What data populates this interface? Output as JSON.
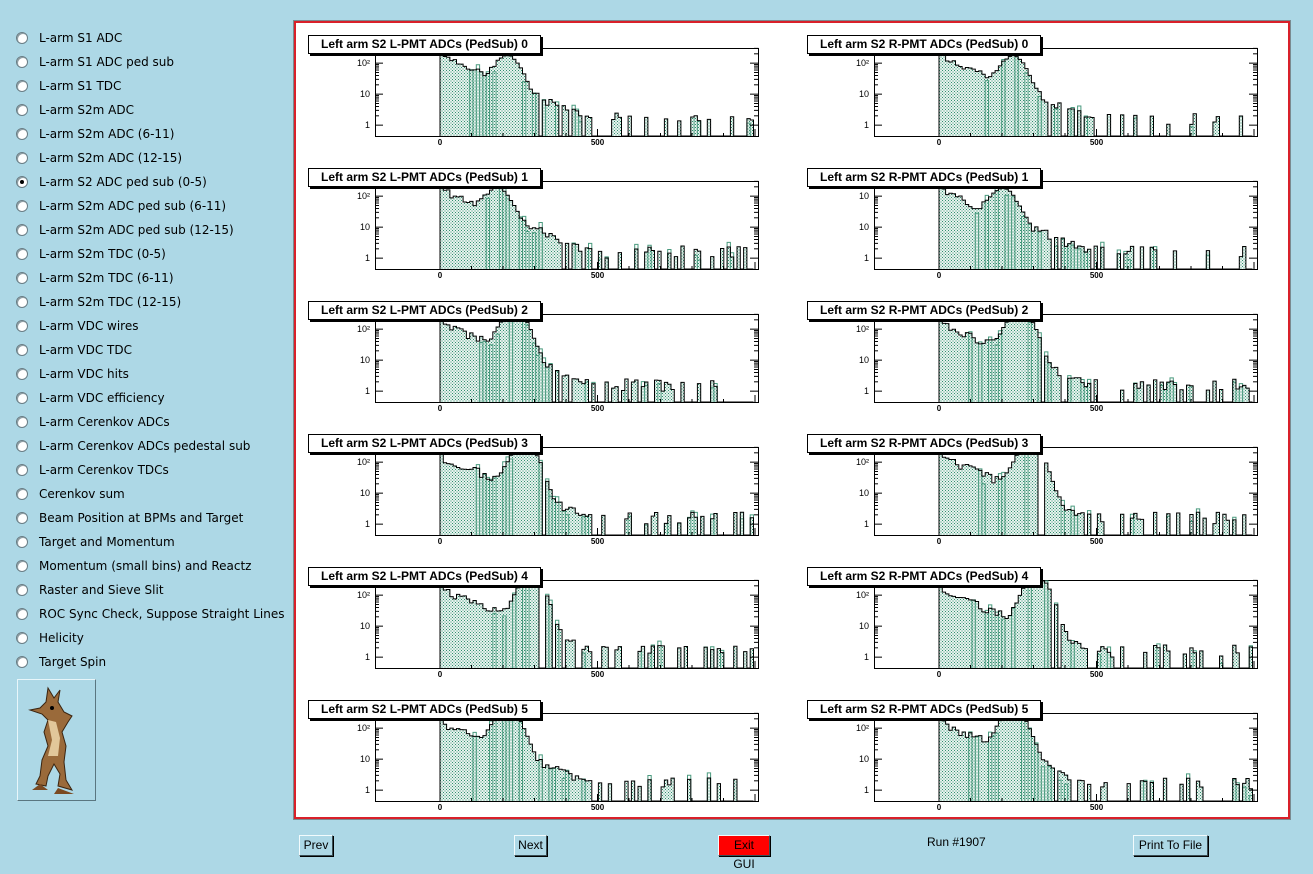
{
  "sidebar": {
    "selected_index": 6,
    "items": [
      {
        "label": "L-arm S1 ADC"
      },
      {
        "label": "L-arm S1 ADC ped sub"
      },
      {
        "label": "L-arm S1 TDC"
      },
      {
        "label": "L-arm S2m ADC"
      },
      {
        "label": "L-arm S2m ADC (6-11)"
      },
      {
        "label": "L-arm S2m ADC (12-15)"
      },
      {
        "label": "L-arm S2 ADC ped sub (0-5)"
      },
      {
        "label": "L-arm S2m ADC ped sub (6-11)"
      },
      {
        "label": "L-arm S2m ADC ped sub (12-15)"
      },
      {
        "label": "L-arm S2m TDC (0-5)"
      },
      {
        "label": "L-arm S2m TDC (6-11)"
      },
      {
        "label": "L-arm S2m TDC (12-15)"
      },
      {
        "label": "L-arm VDC wires"
      },
      {
        "label": "L-arm VDC TDC"
      },
      {
        "label": "L-arm VDC hits"
      },
      {
        "label": "L-arm VDC efficiency"
      },
      {
        "label": "L-arm Cerenkov ADCs"
      },
      {
        "label": "L-arm Cerenkov ADCs pedestal sub"
      },
      {
        "label": "L-arm Cerenkov TDCs"
      },
      {
        "label": "Cerenkov sum"
      },
      {
        "label": "Beam Position at BPMs and Target"
      },
      {
        "label": "Target and Momentum"
      },
      {
        "label": "Momentum (small bins) and Reactz"
      },
      {
        "label": "Raster and Sieve Slit"
      },
      {
        "label": "ROC Sync Check, Suppose Straight Lines"
      },
      {
        "label": "Helicity"
      },
      {
        "label": "Target Spin"
      }
    ],
    "logo_icon": "coyote-mascot-icon"
  },
  "canvas": {
    "border_color": "#d9202a",
    "fill_color": "#2f8f6f",
    "pads": [
      {
        "title": "Left arm S2 L-PMT ADCs (PedSub) 0",
        "y_ticks": [
          "10²",
          "10",
          "1"
        ],
        "x_ticks": [
          "0",
          "500"
        ]
      },
      {
        "title": "Left arm S2 R-PMT ADCs (PedSub) 0",
        "y_ticks": [
          "10²",
          "10",
          "1"
        ],
        "x_ticks": [
          "0",
          "500"
        ]
      },
      {
        "title": "Left arm S2 L-PMT ADCs (PedSub) 1",
        "y_ticks": [
          "10²",
          "10",
          "1"
        ],
        "x_ticks": [
          "0",
          "500"
        ]
      },
      {
        "title": "Left arm S2 R-PMT ADCs (PedSub) 1",
        "y_ticks": [
          "10",
          "10",
          "1"
        ],
        "x_ticks": [
          "0",
          "500"
        ]
      },
      {
        "title": "Left arm S2 L-PMT ADCs (PedSub) 2",
        "y_ticks": [
          "10²",
          "10",
          "1"
        ],
        "x_ticks": [
          "0",
          "500"
        ]
      },
      {
        "title": "Left arm S2 R-PMT ADCs (PedSub) 2",
        "y_ticks": [
          "10²",
          "10",
          "1"
        ],
        "x_ticks": [
          "0",
          "500"
        ]
      },
      {
        "title": "Left arm S2 L-PMT ADCs (PedSub) 3",
        "y_ticks": [
          "10²",
          "10",
          "1"
        ],
        "x_ticks": [
          "0",
          "500"
        ]
      },
      {
        "title": "Left arm S2 R-PMT ADCs (PedSub) 3",
        "y_ticks": [
          "10²",
          "10",
          "1"
        ],
        "x_ticks": [
          "0",
          "500"
        ]
      },
      {
        "title": "Left arm S2 L-PMT ADCs (PedSub) 4",
        "y_ticks": [
          "10²",
          "10",
          "1"
        ],
        "x_ticks": [
          "0",
          "500"
        ]
      },
      {
        "title": "Left arm S2 R-PMT ADCs (PedSub) 4",
        "y_ticks": [
          "10²",
          "10",
          "1"
        ],
        "x_ticks": [
          "0",
          "500"
        ]
      },
      {
        "title": "Left arm S2 L-PMT ADCs (PedSub) 5",
        "y_ticks": [
          "10²",
          "10",
          "1"
        ],
        "x_ticks": [
          "0",
          "500"
        ]
      },
      {
        "title": "Left arm S2 R-PMT ADCs (PedSub) 5",
        "y_ticks": [
          "10²",
          "10",
          "1"
        ],
        "x_ticks": [
          "0",
          "500"
        ]
      }
    ]
  },
  "footer": {
    "prev_label": "Prev",
    "next_label": "Next",
    "exit_label": "Exit GUI",
    "exit_color": "#ff0000",
    "run_label": "Run #1907",
    "print_label": "Print To File"
  }
}
